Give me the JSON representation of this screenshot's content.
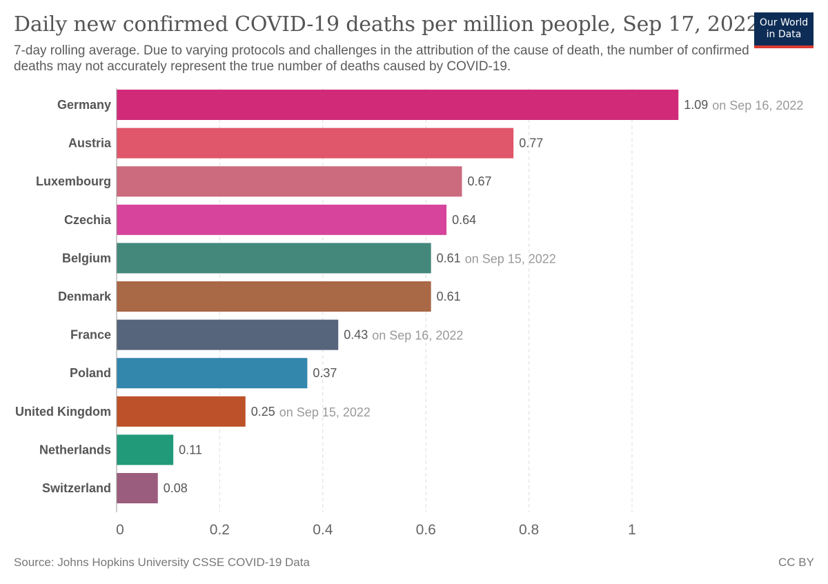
{
  "title": "Daily new confirmed COVID-19 deaths per million people, Sep 17, 2022",
  "subtitle": "7-day rolling average. Due to varying protocols and challenges in the attribution of the cause of death, the number of confirmed deaths may not accurately represent the true number of deaths caused by COVID-19.",
  "logo": {
    "line1": "Our World",
    "line2": "in Data",
    "bg_color": "#0e2d56",
    "accent_color": "#dc3b32"
  },
  "source": "Source: Johns Hopkins University CSSE COVID-19 Data",
  "license": "CC BY",
  "chart_data": {
    "type": "bar",
    "orientation": "horizontal",
    "categories": [
      "Germany",
      "Austria",
      "Luxembourg",
      "Czechia",
      "Belgium",
      "Denmark",
      "France",
      "Poland",
      "United Kingdom",
      "Netherlands",
      "Switzerland"
    ],
    "values": [
      1.09,
      0.77,
      0.67,
      0.64,
      0.61,
      0.61,
      0.43,
      0.37,
      0.25,
      0.11,
      0.08
    ],
    "value_labels": [
      "1.09",
      "0.77",
      "0.67",
      "0.64",
      "0.61",
      "0.61",
      "0.43",
      "0.37",
      "0.25",
      "0.11",
      "0.08"
    ],
    "date_notes": [
      "on Sep 16, 2022",
      "",
      "",
      "",
      "on Sep 15, 2022",
      "",
      "on Sep 16, 2022",
      "",
      "on Sep 15, 2022",
      "",
      ""
    ],
    "colors": [
      "#d12a79",
      "#e0566a",
      "#cc6a7e",
      "#d6449b",
      "#44887c",
      "#a96846",
      "#56657c",
      "#3386ac",
      "#bd5129",
      "#219a79",
      "#9b5d7e"
    ],
    "xlim": [
      0,
      1.1
    ],
    "xticks": [
      0,
      0.2,
      0.4,
      0.6,
      0.8,
      1
    ],
    "xtick_labels": [
      "0",
      "0.2",
      "0.4",
      "0.6",
      "0.8",
      "1"
    ],
    "grid": true,
    "legend": "none"
  }
}
